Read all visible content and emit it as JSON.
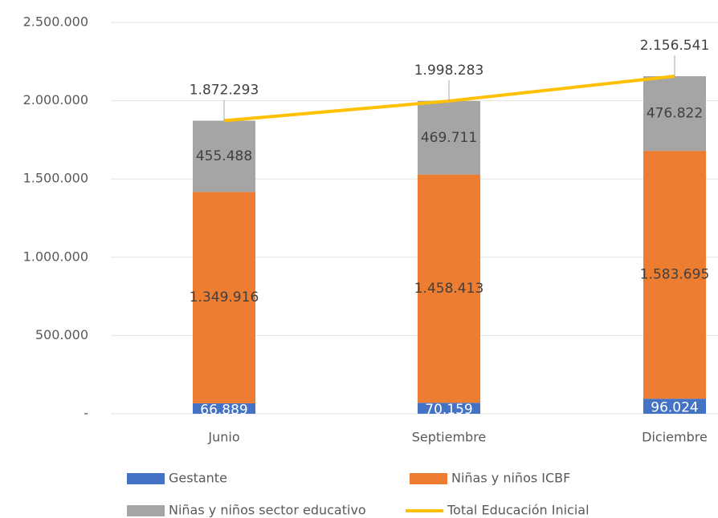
{
  "chart_data": {
    "type": "bar",
    "categories": [
      "Junio",
      "Septiembre",
      "Diciembre"
    ],
    "series": [
      {
        "name": "Gestante",
        "color": "#4472c4",
        "values": [
          66889,
          70159,
          96024
        ],
        "value_labels": [
          "66.889",
          "70.159",
          "96.024"
        ]
      },
      {
        "name": "Niñas y niños ICBF",
        "color": "#ed7d31",
        "values": [
          1349916,
          1458413,
          1583695
        ],
        "value_labels": [
          "1.349.916",
          "1.458.413",
          "1.583.695"
        ]
      },
      {
        "name": "Niñas y niños sector educativo",
        "color": "#a5a5a5",
        "values": [
          455488,
          469711,
          476822
        ],
        "value_labels": [
          "455.488",
          "469.711",
          "476.822"
        ]
      },
      {
        "name": "Total Educación Inicial",
        "type": "line",
        "color": "#ffc000",
        "values": [
          1872293,
          1998283,
          2156541
        ],
        "value_labels": [
          "1.872.293",
          "1.998.283",
          "2.156.541"
        ]
      }
    ],
    "stacked": true,
    "ylim": [
      0,
      2500000
    ],
    "yticks": [
      {
        "value": 0,
        "label": "-"
      },
      {
        "value": 500000,
        "label": "500.000"
      },
      {
        "value": 1000000,
        "label": "1.000.000"
      },
      {
        "value": 1500000,
        "label": "1.500.000"
      },
      {
        "value": 2000000,
        "label": "2.000.000"
      },
      {
        "value": 2500000,
        "label": "2.500.000"
      }
    ],
    "grid": true,
    "legend": "bottom"
  }
}
